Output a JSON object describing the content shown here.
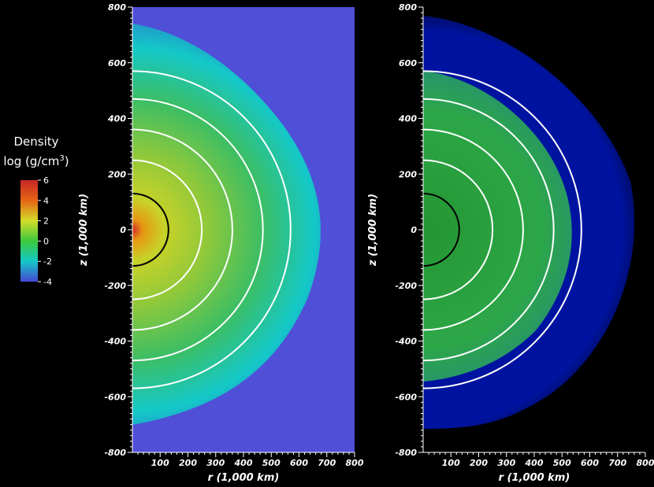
{
  "legend": {
    "title": "Density",
    "unit": "log (g/cm",
    "unit_sup": "3",
    "unit_close": ")",
    "ticks": [
      "6",
      "4",
      "2",
      "0",
      "-2",
      "-4"
    ]
  },
  "colors": {
    "background": "#000000",
    "box_fill": "#4f4fd8",
    "axis": "#ffffff",
    "contour_white": "#ffffff",
    "contour_black": "#000000",
    "colormap": [
      "#4646d2",
      "#14c8c8",
      "#3cc83c",
      "#d2dc28",
      "#e66414",
      "#d22828"
    ]
  },
  "chart_data": [
    {
      "type": "heatmap",
      "panel": "left",
      "variable": "Density",
      "xlabel": "r  (1,000 km)",
      "ylabel": "z  (1,000 km)",
      "xlim": [
        0,
        800
      ],
      "ylim": [
        -800,
        800
      ],
      "x_ticks": [
        "100",
        "200",
        "300",
        "400",
        "500",
        "600",
        "700",
        "800"
      ],
      "y_ticks": [
        "800",
        "600",
        "400",
        "200",
        "0",
        "-200",
        "-400",
        "-600",
        "-800"
      ],
      "color_range": [
        -4,
        6
      ],
      "contours_white_radius": [
        250,
        360,
        470,
        570
      ],
      "contours_black_radius": [
        130
      ]
    },
    {
      "type": "heatmap",
      "panel": "right",
      "xlabel": "r  (1,000 km)",
      "ylabel": "z  (1,000 km)",
      "xlim": [
        0,
        800
      ],
      "ylim": [
        -800,
        800
      ],
      "x_ticks": [
        "100",
        "200",
        "300",
        "400",
        "500",
        "600",
        "700",
        "800"
      ],
      "y_ticks": [
        "800",
        "600",
        "400",
        "200",
        "0",
        "-200",
        "-400",
        "-600",
        "-800"
      ],
      "contours_white_radius": [
        250,
        360,
        470,
        570
      ],
      "contours_black_radius": [
        130
      ]
    }
  ]
}
